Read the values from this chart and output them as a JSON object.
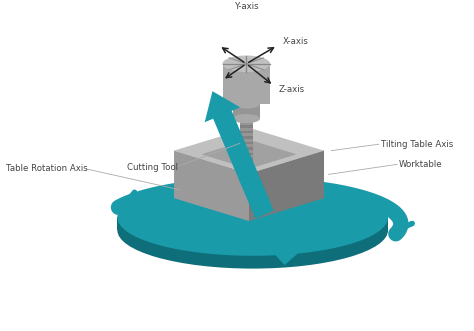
{
  "bg_color": "#ffffff",
  "teal_color": "#1a9baa",
  "teal_dark": "#0e6e7a",
  "teal_mid": "#157f8e",
  "gray_top": "#c0c0c0",
  "gray_left": "#9a9a9a",
  "gray_right": "#7a7a7a",
  "gray_body": "#a8a8a8",
  "gray_neck": "#959595",
  "gray_dark": "#606060",
  "gray_shade": "#888888",
  "label_color": "#444444",
  "labels": {
    "y_axis": "Y-axis",
    "x_axis": "X-axis",
    "z_axis": "Z-axis",
    "cutting_tool": "Cutting Tool",
    "tilting_table_axis": "Tilting Table Axis",
    "table_rotation_axis": "Table Rotation Axis",
    "worktable": "Worktable"
  },
  "figsize": [
    4.74,
    3.31
  ],
  "dpi": 100
}
